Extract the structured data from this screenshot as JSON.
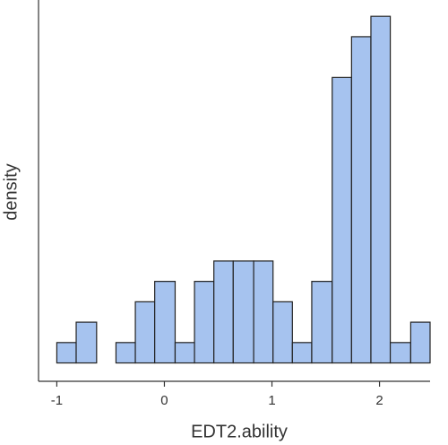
{
  "chart_data": {
    "type": "histogram",
    "x_label": "EDT2.ability",
    "y_label": "density",
    "bins": [
      -1,
      -0.82,
      -0.63,
      -0.45,
      -0.27,
      -0.09,
      0.1,
      0.28,
      0.46,
      0.64,
      0.83,
      1.01,
      1.19,
      1.37,
      1.56,
      1.74,
      1.92,
      2.1,
      2.29,
      2.47
    ],
    "values": [
      1,
      2,
      0,
      1,
      3,
      4,
      1,
      4,
      5,
      5,
      5,
      3,
      1,
      4,
      14,
      16,
      17,
      1,
      2
    ],
    "color": "#a6c3ef",
    "xlim": [
      -1.17,
      2.47
    ],
    "xticks": [
      -1,
      0,
      1,
      2
    ],
    "ylim": [
      -0.9,
      17.8
    ]
  }
}
